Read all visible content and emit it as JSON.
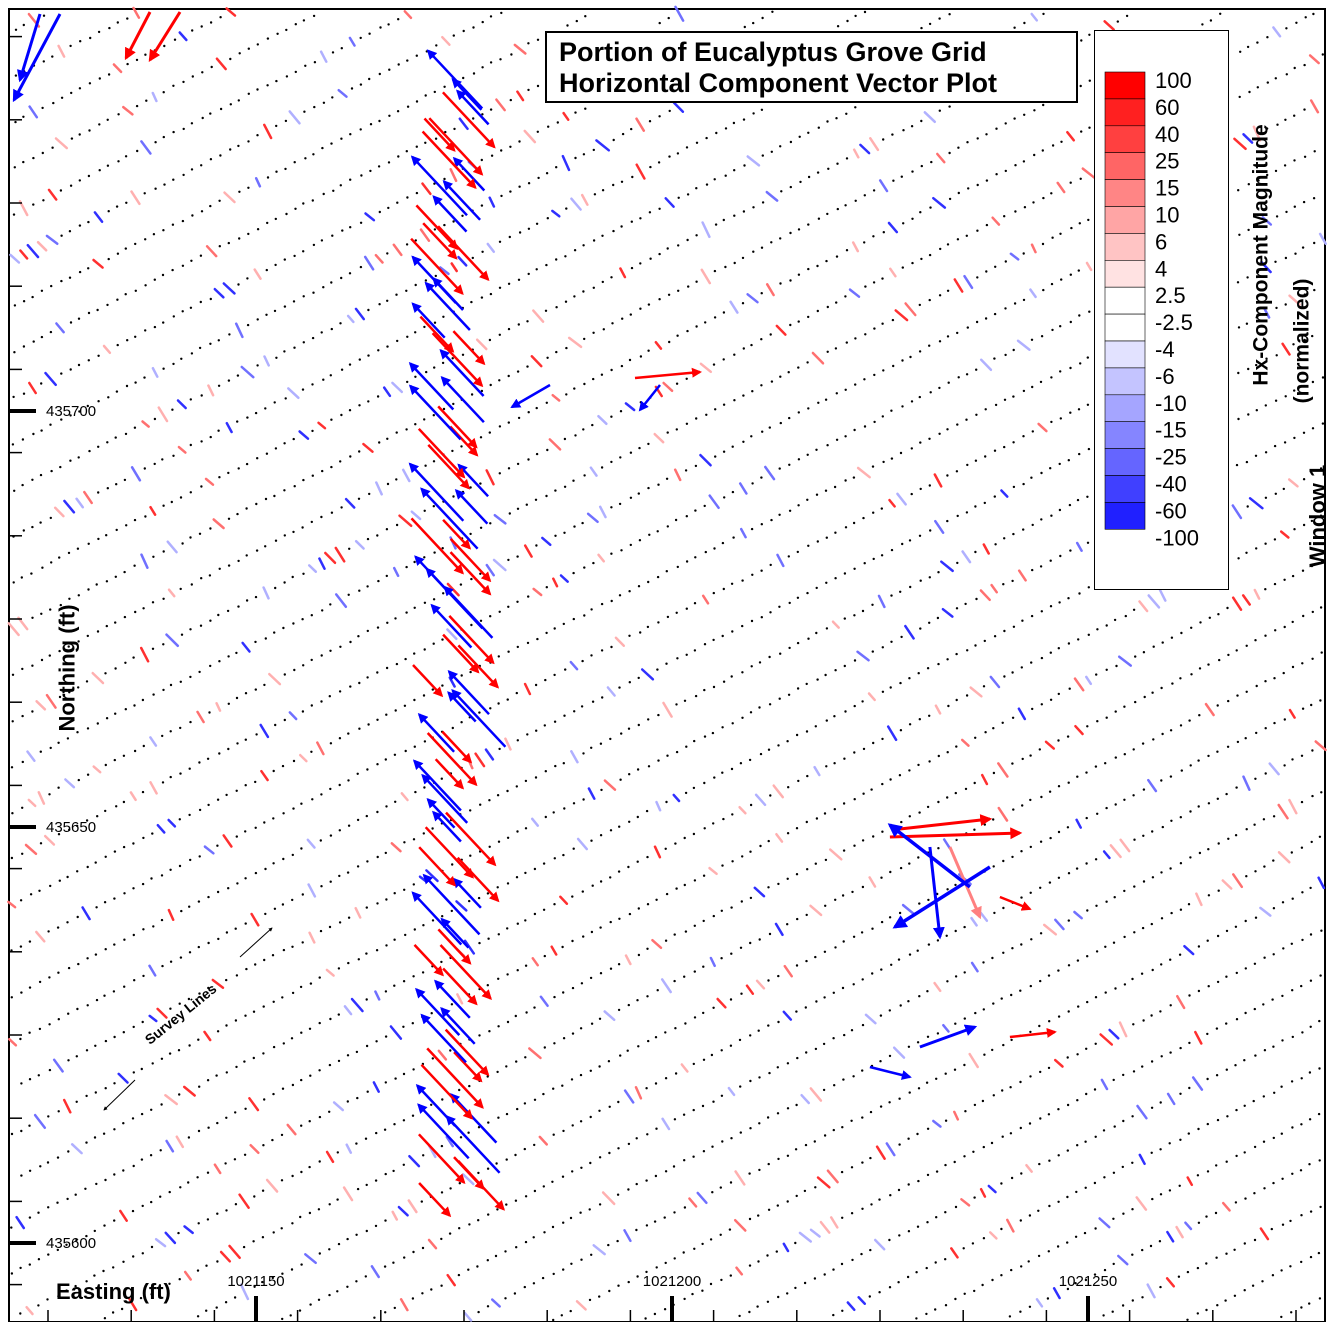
{
  "chart_data": {
    "type": "scatter",
    "title_lines": [
      "Portion of Eucalyptus Grove Grid",
      "Horizontal Component Vector Plot"
    ],
    "xlabel": "Easting (ft)",
    "ylabel": "Northing (ft)",
    "x_ticks": [
      1021150,
      1021200,
      1021250
    ],
    "y_ticks": [
      435600,
      435650,
      435700
    ],
    "xlim": [
      1021121,
      1021281
    ],
    "ylim": [
      435595,
      435746
    ],
    "legend": {
      "title_line1": "Window 1",
      "title_line2": "Hx-Component Magnitude",
      "title_line3": "(normalized)",
      "levels": [
        "100",
        "60",
        "40",
        "25",
        "15",
        "10",
        "6",
        "4",
        "2.5",
        "-2.5",
        "-4",
        "-6",
        "-10",
        "-15",
        "-25",
        "-40",
        "-60",
        "-100"
      ],
      "colors": [
        "#ff0000",
        "#ff2020",
        "#ff4040",
        "#ff6565",
        "#ff8585",
        "#ffa5a5",
        "#ffc4c4",
        "#ffe2e2",
        "#ffffff",
        "#ffffff",
        "#e2e2ff",
        "#c4c4ff",
        "#a5a5ff",
        "#8585ff",
        "#6565ff",
        "#4040ff",
        "#2020ff",
        "#0000ff"
      ]
    },
    "annotation": "Survey Lines",
    "survey_line_direction": "southwest-northeast",
    "grid": false,
    "vector_clusters": [
      {
        "easting": 1021175,
        "northing_range": [
          435605,
          435740
        ],
        "note": "alternating red (SE) and blue (NW) strong vectors"
      },
      {
        "easting": 1021231,
        "northing_range": [
          435625,
          435650
        ],
        "note": "mixed strong vectors"
      }
    ]
  }
}
